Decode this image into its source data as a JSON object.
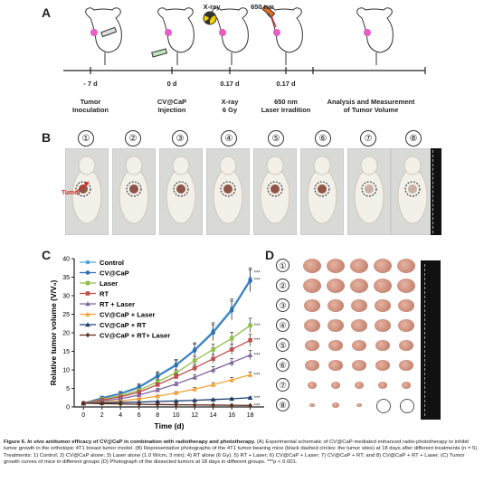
{
  "panelA": {
    "letter": "A",
    "top_labels": [
      {
        "text": "X-ray"
      },
      {
        "text": "650 nm"
      }
    ],
    "days": [
      "- 7 d",
      "0 d",
      "0.17 d",
      "0.17 d"
    ],
    "steps": [
      {
        "lines": [
          "Tumor",
          "Inoculation"
        ]
      },
      {
        "lines": [
          "CV@CaP",
          "Injection"
        ]
      },
      {
        "lines": [
          "X-ray",
          "6 Gy"
        ]
      },
      {
        "lines": [
          "650 nm",
          "Laser Irradition"
        ]
      },
      {
        "lines": [
          "Analysis and Measurement",
          "of Tumor Volume"
        ]
      }
    ]
  },
  "panelB": {
    "letter": "B",
    "groups": [
      "①",
      "②",
      "③",
      "④",
      "⑤",
      "⑥",
      "⑦",
      "⑧"
    ],
    "tumor_label": "Tumor"
  },
  "panelC": {
    "letter": "C",
    "significance": "***"
  },
  "panelD": {
    "letter": "D",
    "groups": [
      "①",
      "②",
      "③",
      "④",
      "⑤",
      "⑥",
      "⑦",
      "⑧"
    ]
  },
  "chart_data": {
    "type": "line",
    "xlabel": "Time (d)",
    "ylabel": "Relative tumor volume (V/V₀)",
    "x": [
      0,
      2,
      4,
      6,
      8,
      10,
      12,
      14,
      16,
      18
    ],
    "xlim": [
      -1,
      19.5
    ],
    "ylim": [
      0,
      40
    ],
    "xticks": [
      0,
      2,
      4,
      6,
      8,
      10,
      12,
      14,
      16,
      18
    ],
    "yticks": [
      0,
      5,
      10,
      15,
      20,
      25,
      30,
      35,
      40
    ],
    "legend_position": "top-left",
    "series": [
      {
        "name": "Control",
        "color": "#4ea3d8",
        "marker": "circle",
        "values": [
          1,
          2.5,
          3.7,
          5.5,
          8.5,
          11.5,
          15.5,
          20.5,
          26.5,
          34.5
        ]
      },
      {
        "name": "CV@CaP",
        "color": "#2e6fb5",
        "marker": "circle",
        "values": [
          1,
          2.4,
          3.5,
          5.2,
          8.2,
          11.2,
          15.2,
          20,
          26,
          34
        ]
      },
      {
        "name": "Laser",
        "color": "#8fbf4a",
        "marker": "square",
        "values": [
          1,
          2.1,
          3.0,
          4.5,
          6.8,
          9.2,
          12.5,
          15.5,
          18.5,
          22
        ]
      },
      {
        "name": "RT",
        "color": "#c0504d",
        "marker": "square",
        "values": [
          1,
          1.9,
          2.7,
          4.0,
          6.0,
          8.2,
          10.5,
          13,
          15.5,
          18
        ]
      },
      {
        "name": "RT + Laser",
        "color": "#8064a2",
        "marker": "triangle",
        "values": [
          1,
          1.6,
          2.2,
          3.2,
          4.6,
          6.2,
          8.0,
          10,
          12,
          14
        ]
      },
      {
        "name": "CV@CaP + Laser",
        "color": "#f2a33a",
        "marker": "triangle",
        "values": [
          1,
          1.3,
          1.6,
          2.2,
          2.9,
          3.8,
          4.8,
          6,
          7.3,
          8.7
        ]
      },
      {
        "name": "CV@CaP + RT",
        "color": "#1f3f6e",
        "marker": "triangle",
        "values": [
          1,
          1.1,
          1.2,
          1.3,
          1.5,
          1.6,
          1.8,
          2.0,
          2.2,
          2.5
        ]
      },
      {
        "name": "CV@CaP + RT+ Laser",
        "color": "#5a2d1a",
        "marker": "diamond",
        "values": [
          1,
          0.9,
          0.8,
          0.7,
          0.65,
          0.6,
          0.55,
          0.5,
          0.45,
          0.4
        ]
      }
    ],
    "error_bars": [
      0.3,
      0.4,
      0.5,
      0.7,
      1.0,
      1.3,
      1.8,
      2.2,
      2.6,
      3.0
    ]
  },
  "caption": {
    "figure_label": "Figure 6.",
    "title_italic": "In vivo",
    "title_rest": " antitumor efficacy of CV@CaP in combination with radiotherapy and phototherapy.",
    "body": " (A) Experimental schematic of CV@CaP-mediated enhanced radio-phototherapy to inhibit tumor growth in the orthotopic 4T1 breast tumor model. (B) Representative photographs of the 4T1 tumor-bearing mice (black dashed circles: the tumor sites) at 18 days after different treatments (n = 5). Treatments: 1) Control; 2) CV@CaP alone; 3) Laser alone (1.0 W/cm, 3 min); 4) RT alone (6 Gy); 5) RT + Laser; 6) CV@CaP + Laser; 7) CV@CaP + RT; and 8) CV@CaP + RT + Laser. (C) Tumor growth curves of mice in different groups (D) Photograph of the dissected tumors at 18 days in different groups. ***p < 0.001."
  }
}
